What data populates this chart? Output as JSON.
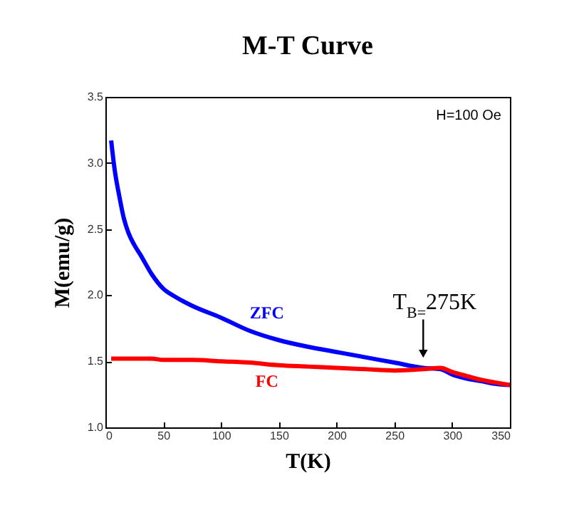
{
  "chart_data": {
    "type": "line",
    "title": "M-T Curve",
    "xlabel": "T(K)",
    "ylabel": "M(emu/g)",
    "xlim": [
      0,
      350
    ],
    "xticks": [
      0,
      50,
      100,
      150,
      200,
      250,
      300,
      350
    ],
    "ylim": [
      1.0,
      3.5
    ],
    "yticks": [
      {
        "value": 1.0,
        "label": "1.0"
      },
      {
        "value": 1.5,
        "label": "1.5"
      },
      {
        "value": 2.0,
        "label": "2.0"
      },
      {
        "value": 2.5,
        "label": "2.5"
      },
      {
        "value": 3.0,
        "label": "3.0"
      },
      {
        "value": 3.5,
        "label": "3.5"
      }
    ],
    "grid": false,
    "legend": false,
    "marker": "none",
    "line_style": "solid",
    "x": [
      5,
      8,
      12,
      16,
      20,
      25,
      30,
      40,
      50,
      60,
      75,
      100,
      125,
      150,
      175,
      200,
      225,
      250,
      275,
      290,
      300,
      312,
      325,
      337,
      350
    ],
    "series": [
      {
        "name": "ZFC",
        "color": "#0000ff",
        "values": [
          3.17,
          2.95,
          2.75,
          2.58,
          2.47,
          2.38,
          2.31,
          2.16,
          2.05,
          1.99,
          1.92,
          1.83,
          1.73,
          1.66,
          1.61,
          1.57,
          1.53,
          1.49,
          1.45,
          1.44,
          1.4,
          1.37,
          1.35,
          1.33,
          1.32
        ]
      },
      {
        "name": "FC",
        "color": "#ff0000",
        "values": [
          1.52,
          1.52,
          1.52,
          1.52,
          1.52,
          1.52,
          1.52,
          1.52,
          1.51,
          1.51,
          1.51,
          1.5,
          1.49,
          1.47,
          1.46,
          1.45,
          1.44,
          1.43,
          1.44,
          1.45,
          1.42,
          1.39,
          1.36,
          1.34,
          1.32
        ]
      }
    ],
    "annotations": [
      "H=100 Oe",
      {
        "text": "T$_{B=}$275K",
        "x": 275,
        "y": 1.45
      }
    ]
  }
}
